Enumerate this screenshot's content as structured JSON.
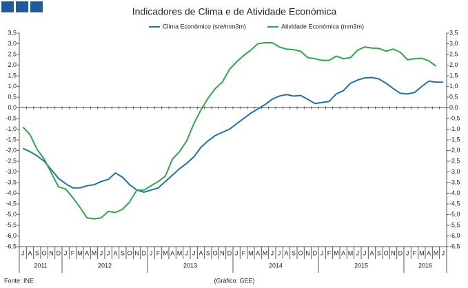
{
  "chart_data": {
    "type": "line",
    "title": "Indicadores de Clima e de Atividade Económica",
    "source": "Fonte: INE",
    "credit": "(Gráfico: GEE)",
    "categories": [
      "J",
      "A",
      "S",
      "O",
      "N",
      "D",
      "J",
      "F",
      "M",
      "A",
      "M",
      "J",
      "J",
      "A",
      "S",
      "O",
      "N",
      "D",
      "J",
      "F",
      "M",
      "A",
      "M",
      "J",
      "J",
      "A",
      "S",
      "O",
      "N",
      "D",
      "J",
      "F",
      "M",
      "A",
      "M",
      "J",
      "J",
      "A",
      "S",
      "O",
      "N",
      "D",
      "J",
      "F",
      "M",
      "A",
      "M",
      "J",
      "J",
      "A",
      "S",
      "O",
      "N",
      "D",
      "J",
      "F",
      "M",
      "A",
      "M",
      "J"
    ],
    "years": [
      "2011",
      "2012",
      "2013",
      "2014",
      "2015",
      "2016"
    ],
    "series": [
      {
        "name": "Clima Económico (sre/mm3m)",
        "color": "#1f6fad",
        "values": [
          -1.9,
          -2.05,
          -2.25,
          -2.5,
          -2.9,
          -3.3,
          -3.55,
          -3.75,
          -3.75,
          -3.65,
          -3.6,
          -3.45,
          -3.35,
          -3.05,
          -3.25,
          -3.6,
          -3.85,
          -3.95,
          -3.85,
          -3.75,
          -3.45,
          -3.15,
          -2.85,
          -2.6,
          -2.3,
          -1.85,
          -1.55,
          -1.3,
          -1.15,
          -1.0,
          -0.75,
          -0.5,
          -0.25,
          -0.05,
          0.15,
          0.4,
          0.55,
          0.62,
          0.55,
          0.58,
          0.4,
          0.2,
          0.25,
          0.3,
          0.65,
          0.8,
          1.15,
          1.3,
          1.4,
          1.42,
          1.35,
          1.15,
          0.9,
          0.68,
          0.65,
          0.72,
          1.0,
          1.25,
          1.2,
          1.2
        ]
      },
      {
        "name": "Atividade Económica (mm3m)",
        "color": "#2aa84a",
        "values": [
          -0.9,
          -1.25,
          -1.95,
          -2.4,
          -3.05,
          -3.7,
          -3.8,
          -4.2,
          -4.65,
          -5.15,
          -5.2,
          -5.15,
          -4.85,
          -4.9,
          -4.75,
          -4.4,
          -3.85,
          -3.85,
          -3.65,
          -3.45,
          -3.2,
          -2.4,
          -2.05,
          -1.55,
          -0.75,
          -0.1,
          0.45,
          0.9,
          1.2,
          1.8,
          2.15,
          2.45,
          2.7,
          3.0,
          3.05,
          3.05,
          2.85,
          2.75,
          2.72,
          2.65,
          2.35,
          2.3,
          2.22,
          2.22,
          2.42,
          2.3,
          2.35,
          2.7,
          2.85,
          2.8,
          2.78,
          2.65,
          2.75,
          2.6,
          2.25,
          2.3,
          2.32,
          2.2,
          1.95,
          null
        ]
      }
    ],
    "ylim": [
      -6.5,
      3.5
    ],
    "yticks": [
      {
        "value": 3.5,
        "label": "3,5"
      },
      {
        "value": 3,
        "label": "3,0"
      },
      {
        "value": 2.5,
        "label": "2,5"
      },
      {
        "value": 2,
        "label": "2,0"
      },
      {
        "value": 1.5,
        "label": "1,5"
      },
      {
        "value": 1,
        "label": "1,0"
      },
      {
        "value": 0.5,
        "label": "0,5"
      },
      {
        "value": 0,
        "label": "0,0"
      },
      {
        "value": -0.5,
        "label": "-0,5"
      },
      {
        "value": -1,
        "label": "-1,0"
      },
      {
        "value": -1.5,
        "label": "-1,5"
      },
      {
        "value": -2,
        "label": "-2,0"
      },
      {
        "value": -2.5,
        "label": "-2,5"
      },
      {
        "value": -3,
        "label": "-3,0"
      },
      {
        "value": -3.5,
        "label": "-3,5"
      },
      {
        "value": -4,
        "label": "-4,0"
      },
      {
        "value": -4.5,
        "label": "-4,5"
      },
      {
        "value": -5,
        "label": "-5,0"
      },
      {
        "value": -5.5,
        "label": "-5,5"
      },
      {
        "value": -6,
        "label": "-6,0"
      },
      {
        "value": -6.5,
        "label": "-6,5"
      }
    ],
    "y2lim": [
      -6.5,
      3.5
    ],
    "y2ticks": [
      {
        "value": 3.5,
        "label": "3,5"
      },
      {
        "value": 3,
        "label": "3,0"
      },
      {
        "value": 2.5,
        "label": "2,5"
      },
      {
        "value": 2,
        "label": "2,0"
      },
      {
        "value": 1.5,
        "label": "1,5"
      },
      {
        "value": 1,
        "label": "1,0"
      },
      {
        "value": 0.5,
        "label": "0,5"
      },
      {
        "value": 0,
        "label": "0,0"
      },
      {
        "value": -0.5,
        "label": "-0,5"
      },
      {
        "value": -1,
        "label": "-1,0"
      },
      {
        "value": -1.5,
        "label": "-1,5"
      },
      {
        "value": -2,
        "label": "-2,0"
      },
      {
        "value": -2.5,
        "label": "-2,5"
      },
      {
        "value": -3,
        "label": "-3,0"
      },
      {
        "value": -3.5,
        "label": "-3,5"
      },
      {
        "value": -4,
        "label": "-4,0"
      },
      {
        "value": -4.5,
        "label": "-4,5"
      },
      {
        "value": -5,
        "label": "-5,0"
      },
      {
        "value": -5.5,
        "label": "-5,5"
      },
      {
        "value": -6,
        "label": "-6,0"
      },
      {
        "value": -6.5,
        "label": "-6,5"
      }
    ],
    "legend": "top",
    "grid": false
  }
}
